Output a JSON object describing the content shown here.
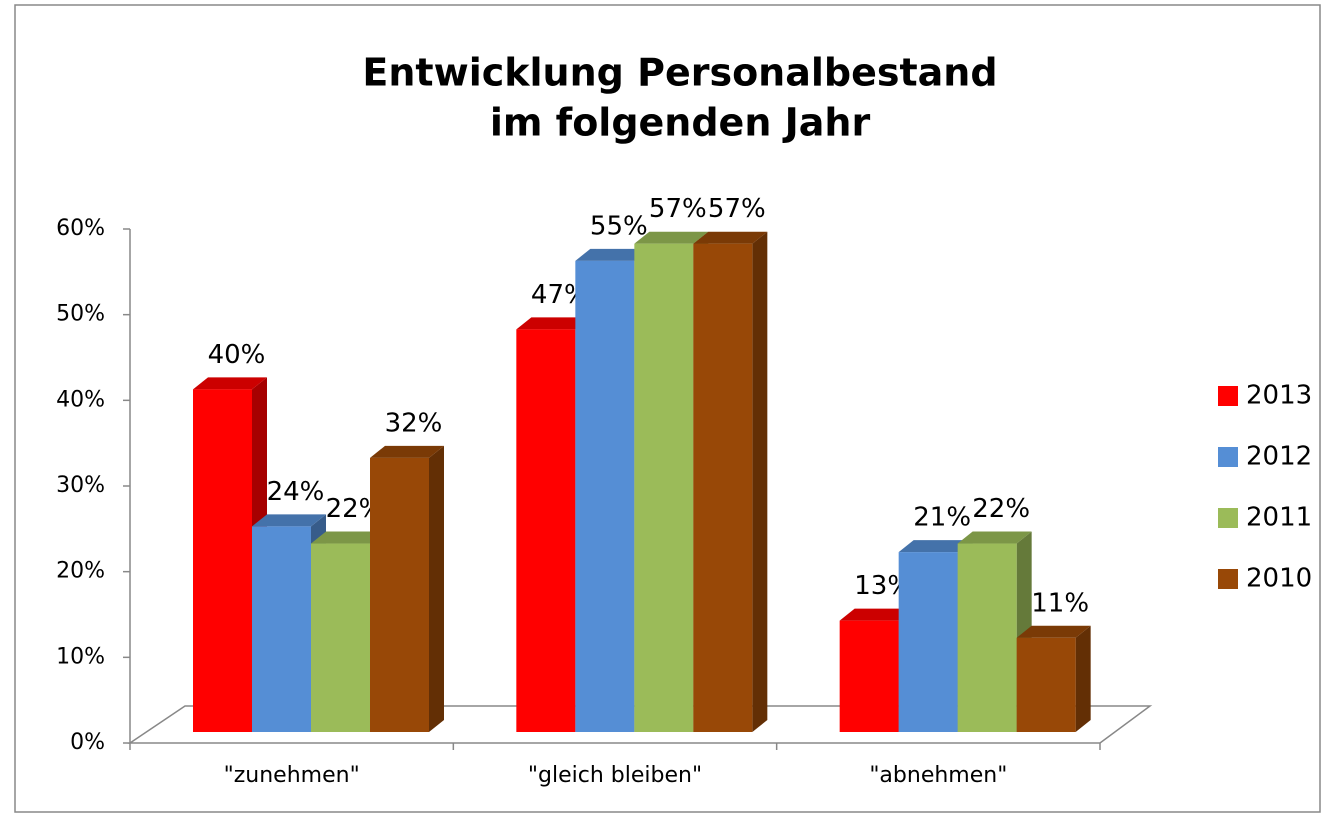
{
  "chart_data": {
    "type": "bar3d",
    "title": [
      "Entwicklung Personalbestand",
      "im folgenden Jahr"
    ],
    "categories": [
      "\"zunehmen\"",
      "\"gleich bleiben\"",
      "\"abnehmen\""
    ],
    "series": [
      {
        "name": "2013",
        "color": "#ff0000",
        "values": [
          40,
          47,
          13
        ],
        "value_labels": [
          "40%",
          "47%",
          "13%"
        ]
      },
      {
        "name": "2012",
        "color": "#558ed5",
        "values": [
          24,
          55,
          21
        ],
        "value_labels": [
          "24%",
          "55%",
          "21%"
        ]
      },
      {
        "name": "2011",
        "color": "#9bbb59",
        "values": [
          22,
          57,
          22
        ],
        "value_labels": [
          "22%",
          "57%",
          "22%"
        ]
      },
      {
        "name": "2010",
        "color": "#984807",
        "values": [
          32,
          57,
          11
        ],
        "value_labels": [
          "32%",
          "57%",
          "11%"
        ]
      }
    ],
    "ylim": [
      0,
      60
    ],
    "yticks": [
      {
        "value": 0,
        "label": "0%"
      },
      {
        "value": 10,
        "label": "10%"
      },
      {
        "value": 20,
        "label": "20%"
      },
      {
        "value": 30,
        "label": "30%"
      },
      {
        "value": 40,
        "label": "40%"
      },
      {
        "value": 50,
        "label": "50%"
      },
      {
        "value": 60,
        "label": "60%"
      }
    ],
    "legend": "right"
  }
}
